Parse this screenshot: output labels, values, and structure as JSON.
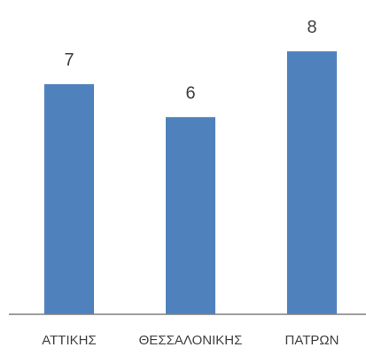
{
  "chart_data": {
    "type": "bar",
    "categories": [
      "ΑΤΤΙΚΗΣ",
      "ΘΕΣΣΑΛΟΝΙΚΗΣ",
      "ΠΑΤΡΩΝ"
    ],
    "values": [
      7,
      6,
      8
    ],
    "title": "",
    "xlabel": "",
    "ylabel": "",
    "ylim": [
      0,
      8
    ],
    "grid": false,
    "legend": "none",
    "data_labels": true,
    "bar_color": "#4f81bd",
    "axis_color": "#7f7f7f",
    "text_color": "#404040"
  }
}
